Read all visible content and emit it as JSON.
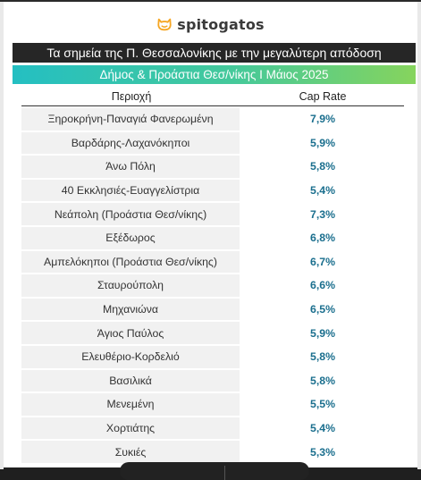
{
  "brand": {
    "name": "spitogatos",
    "accent": "#f5a623"
  },
  "title": "Τα σημεία της Π. Θεσσαλονίκης με την μεγαλύτερη απόδοση",
  "subtitle": "Δήμος & Προάστια Θεσ/νίκης I Μάιος 2025",
  "columns": {
    "area": "Περιοχή",
    "cap_rate": "Cap Rate"
  },
  "rows": [
    {
      "area": "Ξηροκρήνη-Παναγιά Φανερωμένη",
      "cap_rate": "7,9%"
    },
    {
      "area": "Βαρδάρης-Λαχανόκηποι",
      "cap_rate": "5,9%"
    },
    {
      "area": "Άνω Πόλη",
      "cap_rate": "5,8%"
    },
    {
      "area": "40 Εκκλησιές-Ευαγγελίστρια",
      "cap_rate": "5,4%"
    },
    {
      "area": "Νεάπολη (Προάστια Θεσ/νίκης)",
      "cap_rate": "7,3%"
    },
    {
      "area": "Εξέδωρος",
      "cap_rate": "6,8%"
    },
    {
      "area": "Αμπελόκηποι (Προάστια Θεσ/νίκης)",
      "cap_rate": "6,7%"
    },
    {
      "area": "Σταυρούπολη",
      "cap_rate": "6,6%"
    },
    {
      "area": "Μηχανιώνα",
      "cap_rate": "6,5%"
    },
    {
      "area": "Άγιος Παύλος",
      "cap_rate": "5,9%"
    },
    {
      "area": "Ελευθέριο-Κορδελιό",
      "cap_rate": "5,8%"
    },
    {
      "area": "Βασιλικά",
      "cap_rate": "5,8%"
    },
    {
      "area": "Μενεμένη",
      "cap_rate": "5,5%"
    },
    {
      "area": "Χορτιάτης",
      "cap_rate": "5,4%"
    },
    {
      "area": "Συκιές",
      "cap_rate": "5,3%"
    }
  ]
}
